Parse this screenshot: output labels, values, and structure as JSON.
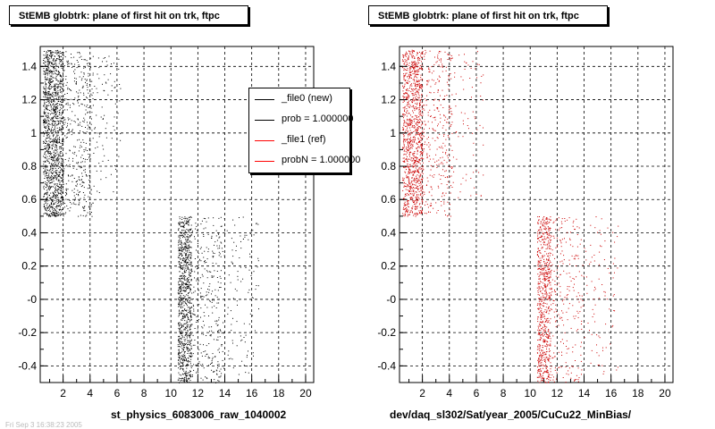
{
  "panels": [
    {
      "title": "StEMB globtrk: plane of first hit on trk, ftpc",
      "caption": "st_physics_6083006_raw_1040002"
    },
    {
      "title": "StEMB globtrk: plane of first hit on trk, ftpc",
      "caption": "dev/daq_sl302/Sat/year_2005/CuCu22_MinBias/"
    }
  ],
  "legend": {
    "entries": [
      {
        "label": "_file0 (new)",
        "color": "#000000"
      },
      {
        "label": "prob = 1.000000",
        "color": "#000000"
      },
      {
        "label": "_file1 (ref)",
        "color": "#ff0000"
      },
      {
        "label": "probN = 1.000000",
        "color": "#ff0000"
      }
    ]
  },
  "footer": "Fri Sep  3 16:38:23 2005",
  "colors": {
    "new": "#000000",
    "ref": "#cc0000",
    "grid": "#000000"
  },
  "chart_data": [
    {
      "type": "scatter",
      "title": "StEMB globtrk: plane of first hit on trk, ftpc",
      "xlabel": "",
      "ylabel": "",
      "xlim": [
        0.3,
        20.6
      ],
      "ylim": [
        -0.5,
        1.52
      ],
      "xticks": [
        2,
        4,
        6,
        8,
        10,
        12,
        14,
        16,
        18,
        20
      ],
      "yticks": [
        {
          "v": -0.4,
          "label": "-0.4"
        },
        {
          "v": -0.2,
          "label": "-0.2"
        },
        {
          "v": 0.0,
          "label": "-0"
        },
        {
          "v": 0.2,
          "label": "0.2"
        },
        {
          "v": 0.4,
          "label": "0.4"
        },
        {
          "v": 0.6,
          "label": "0.6"
        },
        {
          "v": 0.8,
          "label": "0.8"
        },
        {
          "v": 1.0,
          "label": "1"
        },
        {
          "v": 1.2,
          "label": "1.2"
        },
        {
          "v": 1.4,
          "label": "1.4"
        }
      ],
      "grid": true,
      "series_color": "#000000",
      "clusters": [
        {
          "x": [
            0.5,
            2.0
          ],
          "y": [
            0.5,
            1.5
          ],
          "n": 1400
        },
        {
          "x": [
            2.0,
            4.2
          ],
          "y": [
            0.5,
            1.5
          ],
          "n": 380
        },
        {
          "x": [
            4.2,
            6.3
          ],
          "y": [
            0.6,
            1.5
          ],
          "n": 80
        },
        {
          "x": [
            10.5,
            11.5
          ],
          "y": [
            -0.5,
            0.5
          ],
          "n": 900
        },
        {
          "x": [
            11.5,
            13.8
          ],
          "y": [
            -0.5,
            0.5
          ],
          "n": 300
        },
        {
          "x": [
            13.8,
            16.5
          ],
          "y": [
            -0.45,
            0.5
          ],
          "n": 110
        }
      ]
    },
    {
      "type": "scatter",
      "title": "StEMB globtrk: plane of first hit on trk, ftpc",
      "xlabel": "",
      "ylabel": "",
      "xlim": [
        0.3,
        20.6
      ],
      "ylim": [
        -0.5,
        1.52
      ],
      "xticks": [
        2,
        4,
        6,
        8,
        10,
        12,
        14,
        16,
        18,
        20
      ],
      "yticks": [
        {
          "v": -0.4,
          "label": "-0.4"
        },
        {
          "v": -0.2,
          "label": "-0.2"
        },
        {
          "v": 0.0,
          "label": "-0"
        },
        {
          "v": 0.2,
          "label": "0.2"
        },
        {
          "v": 0.4,
          "label": "0.4"
        },
        {
          "v": 0.6,
          "label": "0.6"
        },
        {
          "v": 0.8,
          "label": "0.8"
        },
        {
          "v": 1.0,
          "label": "1"
        },
        {
          "v": 1.2,
          "label": "1.2"
        },
        {
          "v": 1.4,
          "label": "1.4"
        }
      ],
      "grid": true,
      "series_color": "#cc0000",
      "clusters": [
        {
          "x": [
            0.5,
            2.0
          ],
          "y": [
            0.5,
            1.5
          ],
          "n": 1100
        },
        {
          "x": [
            2.0,
            4.2
          ],
          "y": [
            0.5,
            1.5
          ],
          "n": 300
        },
        {
          "x": [
            4.2,
            6.5
          ],
          "y": [
            0.6,
            1.5
          ],
          "n": 70
        },
        {
          "x": [
            10.5,
            11.5
          ],
          "y": [
            -0.5,
            0.5
          ],
          "n": 700
        },
        {
          "x": [
            11.5,
            13.8
          ],
          "y": [
            -0.5,
            0.5
          ],
          "n": 230
        },
        {
          "x": [
            13.8,
            16.5
          ],
          "y": [
            -0.45,
            0.5
          ],
          "n": 90
        }
      ]
    }
  ]
}
